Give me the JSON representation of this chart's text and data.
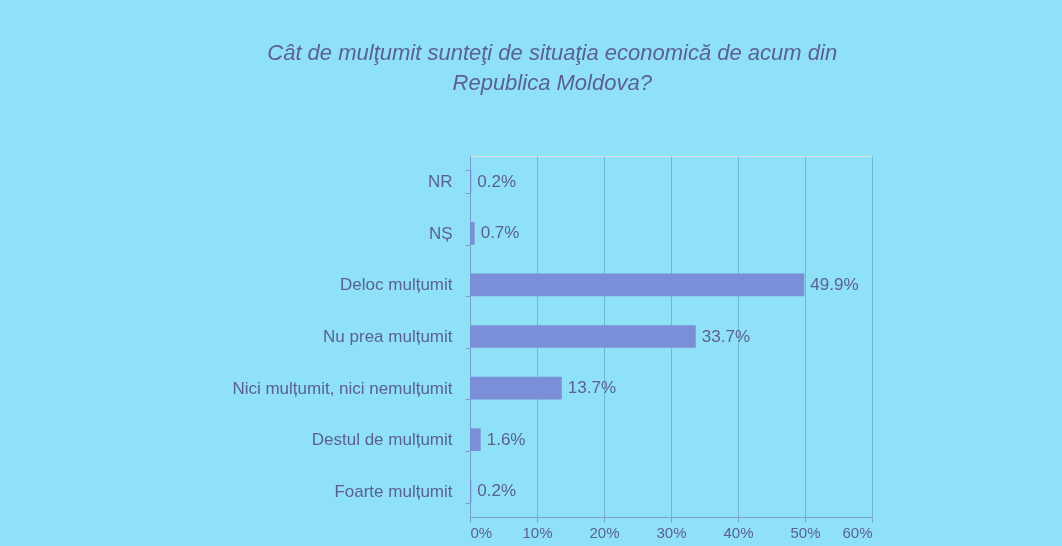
{
  "chart_data": {
    "type": "bar",
    "orientation": "horizontal",
    "title": "Cât de mulţumit sunteţi de situaţia economică de acum din Republica Moldova?",
    "categories": [
      "NR",
      "NȘ",
      "Deloc mulțumit",
      "Nu prea mulțumit",
      "Nici mulțumit, nici nemulțumit",
      "Destul de mulțumit",
      "Foarte mulțumit"
    ],
    "values": [
      0.2,
      0.7,
      49.9,
      33.7,
      13.7,
      1.6,
      0.2
    ],
    "value_labels": [
      "0.2%",
      "0.7%",
      "49.9%",
      "33.7%",
      "13.7%",
      "1.6%",
      "0.2%"
    ],
    "color": "#7b8ed8",
    "xlim": [
      0,
      60
    ],
    "xticks": [
      {
        "value": 0,
        "label": "0%"
      },
      {
        "value": 10,
        "label": "10%"
      },
      {
        "value": 20,
        "label": "20%"
      },
      {
        "value": 30,
        "label": "30%"
      },
      {
        "value": 40,
        "label": "40%"
      },
      {
        "value": 50,
        "label": "50%"
      },
      {
        "value": 60,
        "label": "60%"
      }
    ],
    "grid": "x"
  }
}
